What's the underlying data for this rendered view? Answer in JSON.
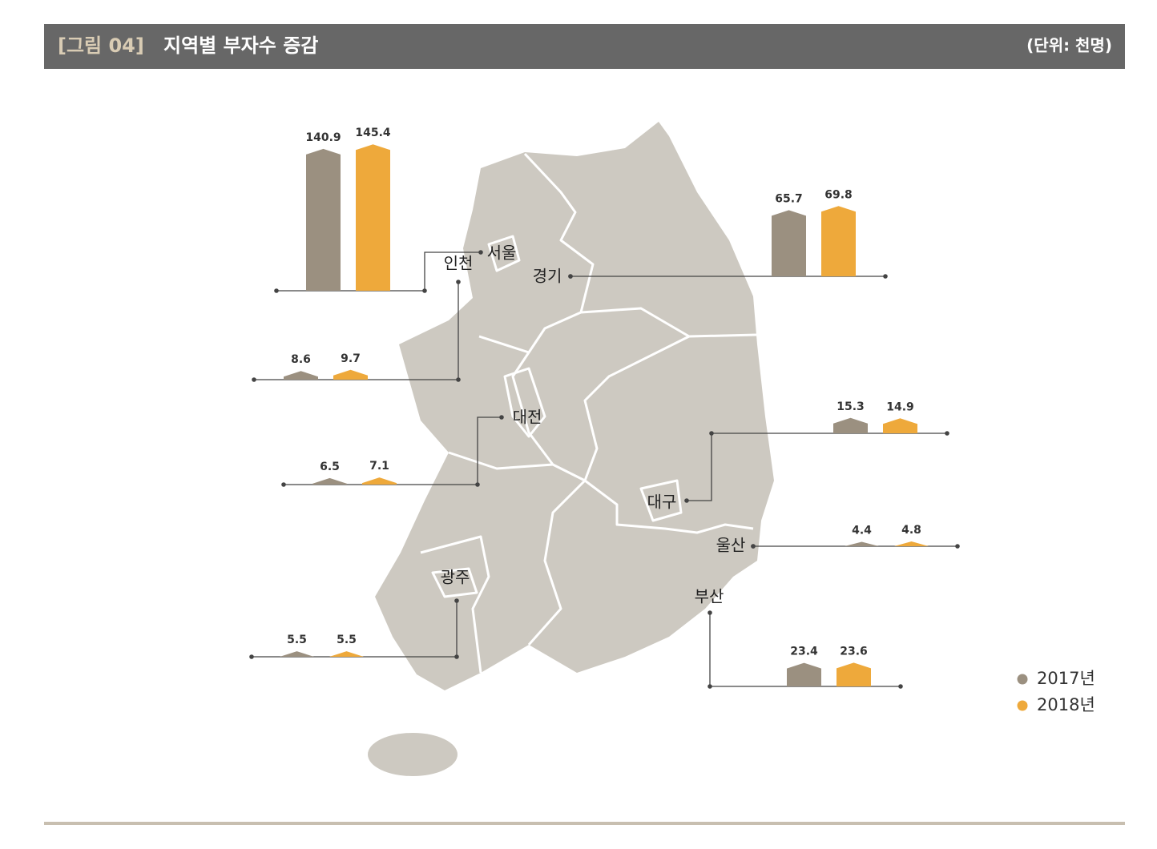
{
  "chart_data": {
    "type": "bar",
    "title_prefix": "[그림 04]",
    "title": "지역별 부자수 증감",
    "unit": "(단위: 천명)",
    "categories": [
      "서울",
      "인천",
      "경기",
      "대전",
      "광주",
      "대구",
      "울산",
      "부산"
    ],
    "series": [
      {
        "name": "2017년",
        "color": "#9b9080",
        "values": [
          140.9,
          8.6,
          65.7,
          6.5,
          5.5,
          15.3,
          4.4,
          23.4
        ]
      },
      {
        "name": "2018년",
        "color": "#eea93b",
        "values": [
          145.4,
          9.7,
          69.8,
          7.1,
          5.5,
          14.9,
          4.8,
          23.6
        ]
      }
    ]
  }
}
